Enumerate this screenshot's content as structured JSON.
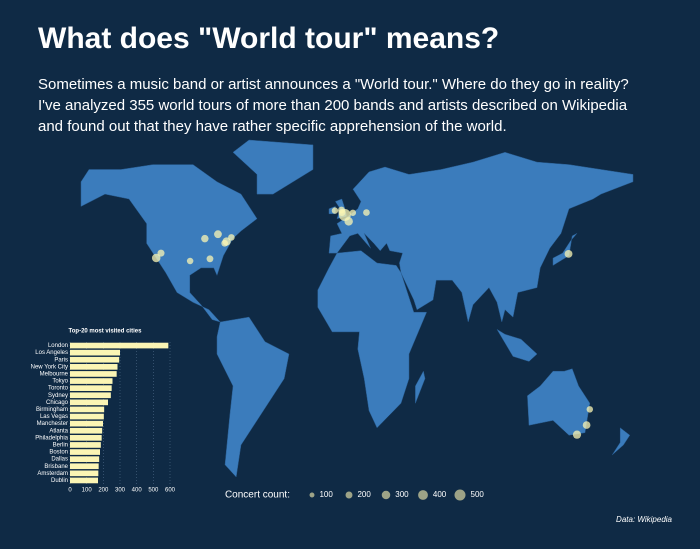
{
  "title": "What does \"World tour\" means?",
  "subtitle_lines": [
    "Sometimes a music band or artist announces a \"World tour.\" Where do they go in reality?",
    "I've analyzed 355 world tours of more than 200 bands and artists described on Wikipedia",
    "and found out that they have rather specific apprehension of the world."
  ],
  "source": "Data: Wikipedia",
  "size_legend": {
    "label": "Concert count:",
    "values": [
      100,
      200,
      300,
      400,
      500
    ]
  },
  "chart_data": {
    "type": "bar",
    "orientation": "horizontal",
    "title": "Top-20 most visited cities",
    "categories": [
      "London",
      "Los Angeles",
      "Paris",
      "New York City",
      "Melbourne",
      "Tokyo",
      "Toronto",
      "Sydney",
      "Chicago",
      "Birmingham",
      "Las Vegas",
      "Manchester",
      "Atlanta",
      "Philadelphia",
      "Berlin",
      "Boston",
      "Dallas",
      "Brisbane",
      "Amsterdam",
      "Dublin"
    ],
    "values": [
      590,
      300,
      295,
      285,
      280,
      255,
      250,
      245,
      228,
      205,
      203,
      198,
      193,
      190,
      185,
      180,
      175,
      172,
      170,
      168
    ],
    "color": "#fbf5b4",
    "xlim": [
      0,
      600
    ],
    "xticks": [
      0,
      100,
      200,
      300,
      400,
      500,
      600
    ],
    "grid": true
  }
}
